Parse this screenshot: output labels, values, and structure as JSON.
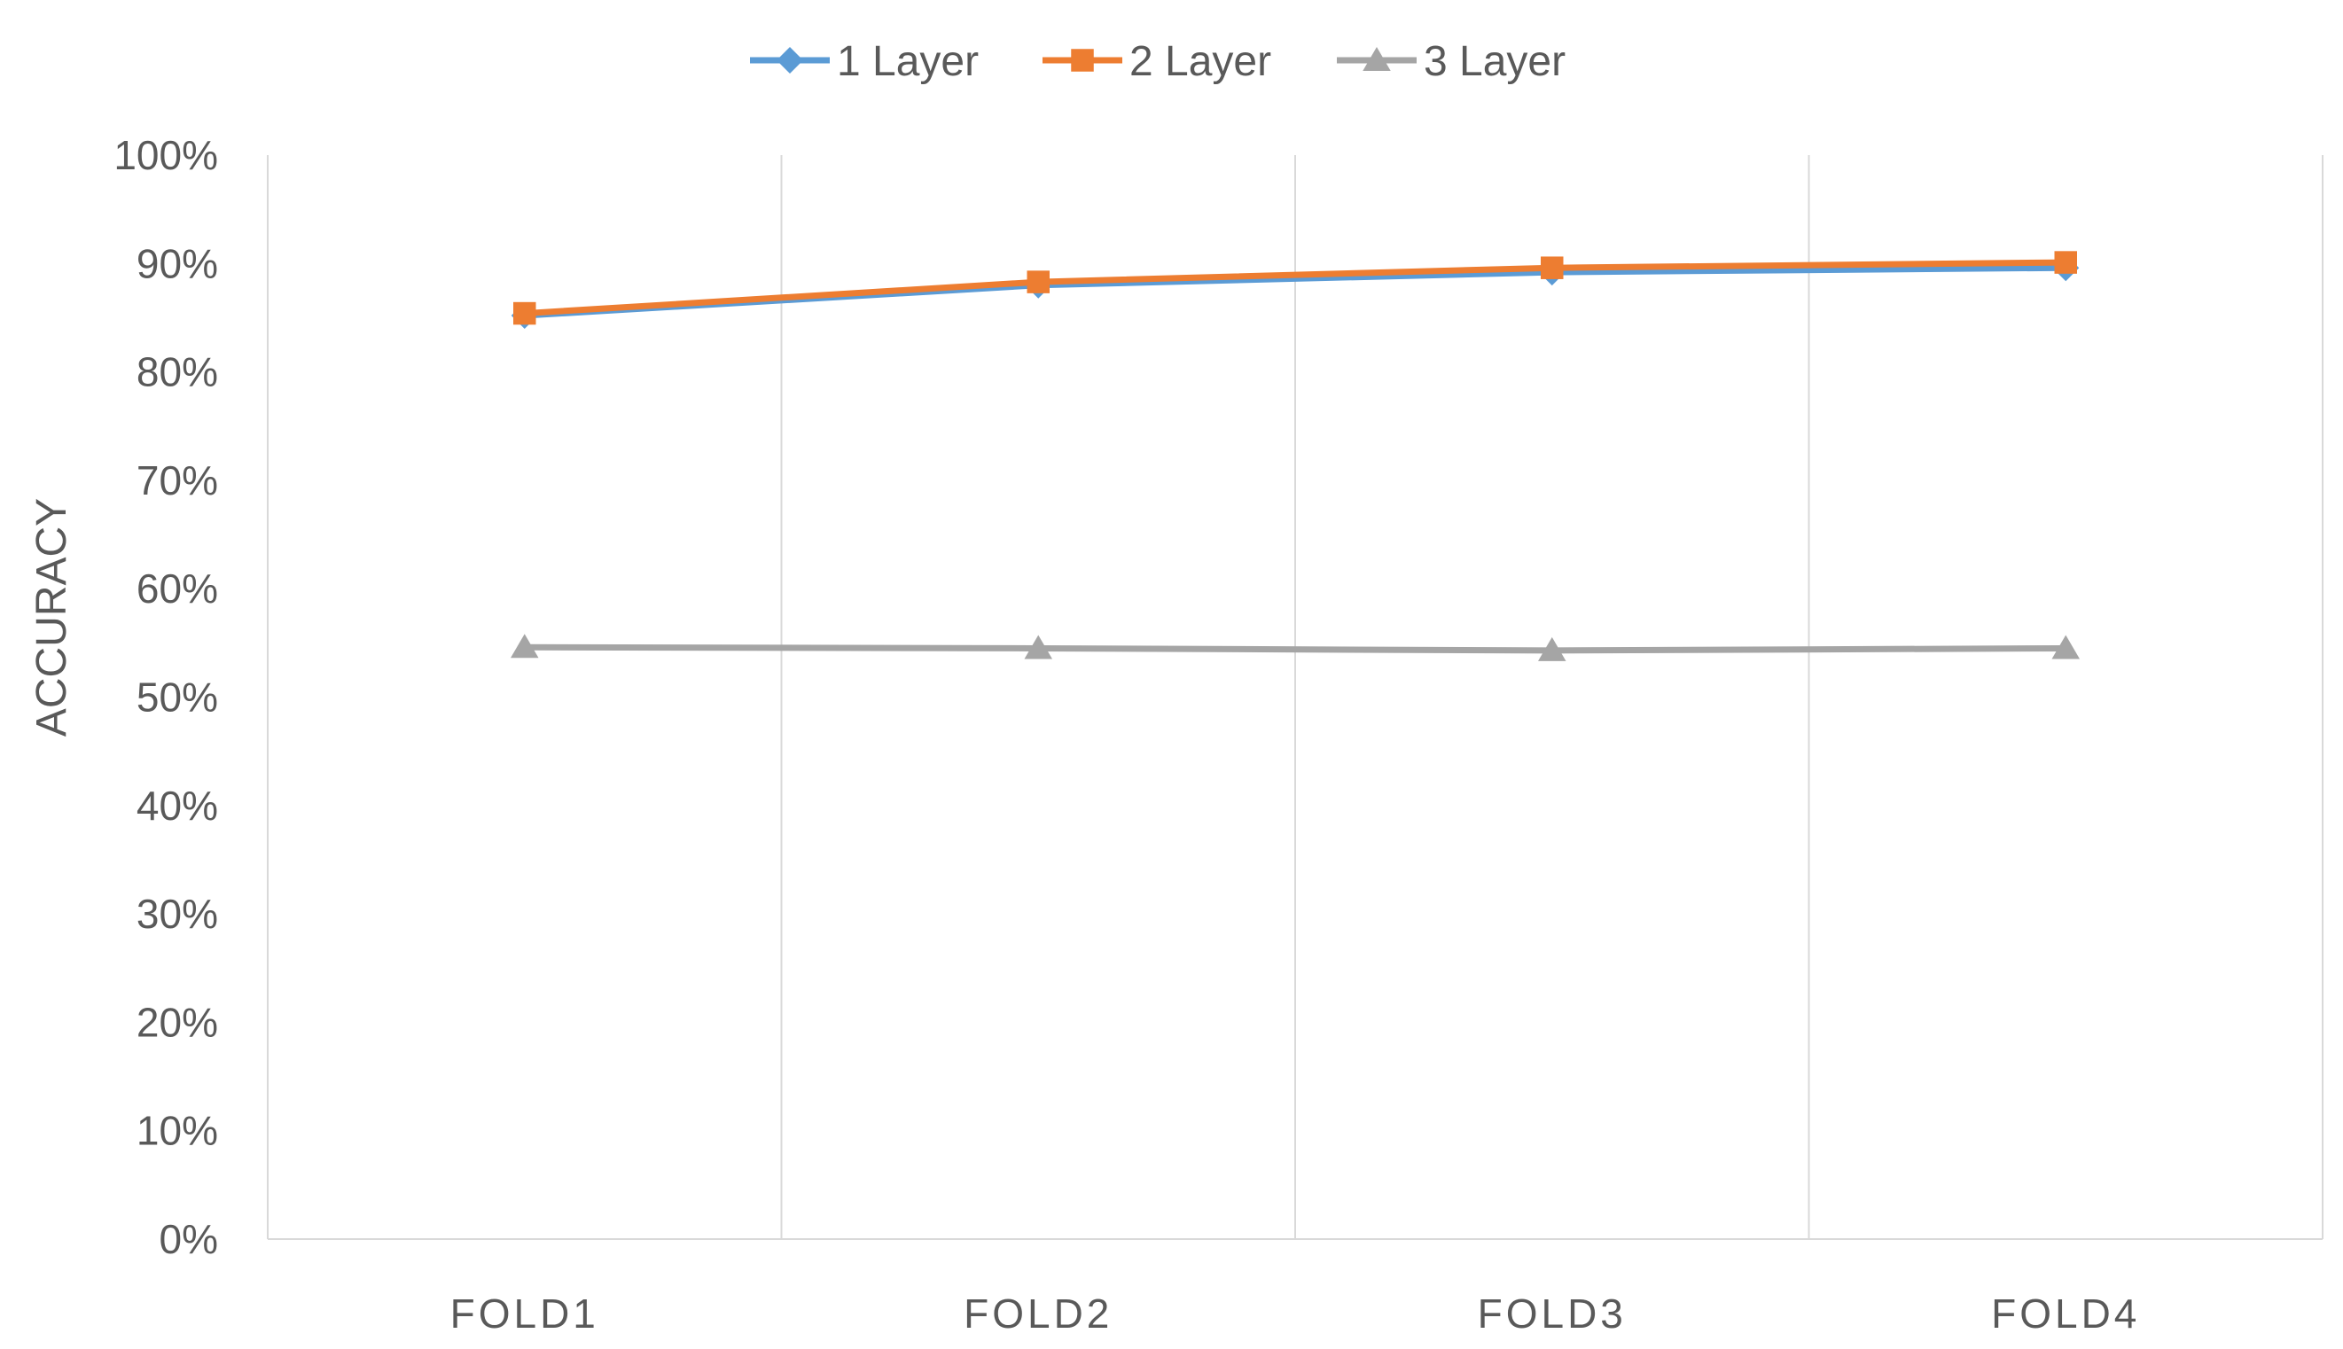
{
  "chart_data": {
    "type": "line",
    "title": "",
    "xlabel": "",
    "ylabel": "ACCURACY",
    "categories": [
      "FOLD1",
      "FOLD2",
      "FOLD3",
      "FOLD4"
    ],
    "ylim": [
      0,
      100
    ],
    "ytick_step": 10,
    "ytick_suffix": "%",
    "grid": "vertical",
    "legend_position": "top-center",
    "series": [
      {
        "name": "1 Layer",
        "values": [
          85.2,
          88.0,
          89.2,
          89.6
        ],
        "color": "#5B9BD5",
        "marker": "diamond"
      },
      {
        "name": "2 Layer",
        "values": [
          85.4,
          88.3,
          89.6,
          90.1
        ],
        "color": "#ED7D31",
        "marker": "square"
      },
      {
        "name": "3 Layer",
        "values": [
          54.6,
          54.5,
          54.3,
          54.5
        ],
        "color": "#A5A5A5",
        "marker": "triangle"
      }
    ]
  }
}
